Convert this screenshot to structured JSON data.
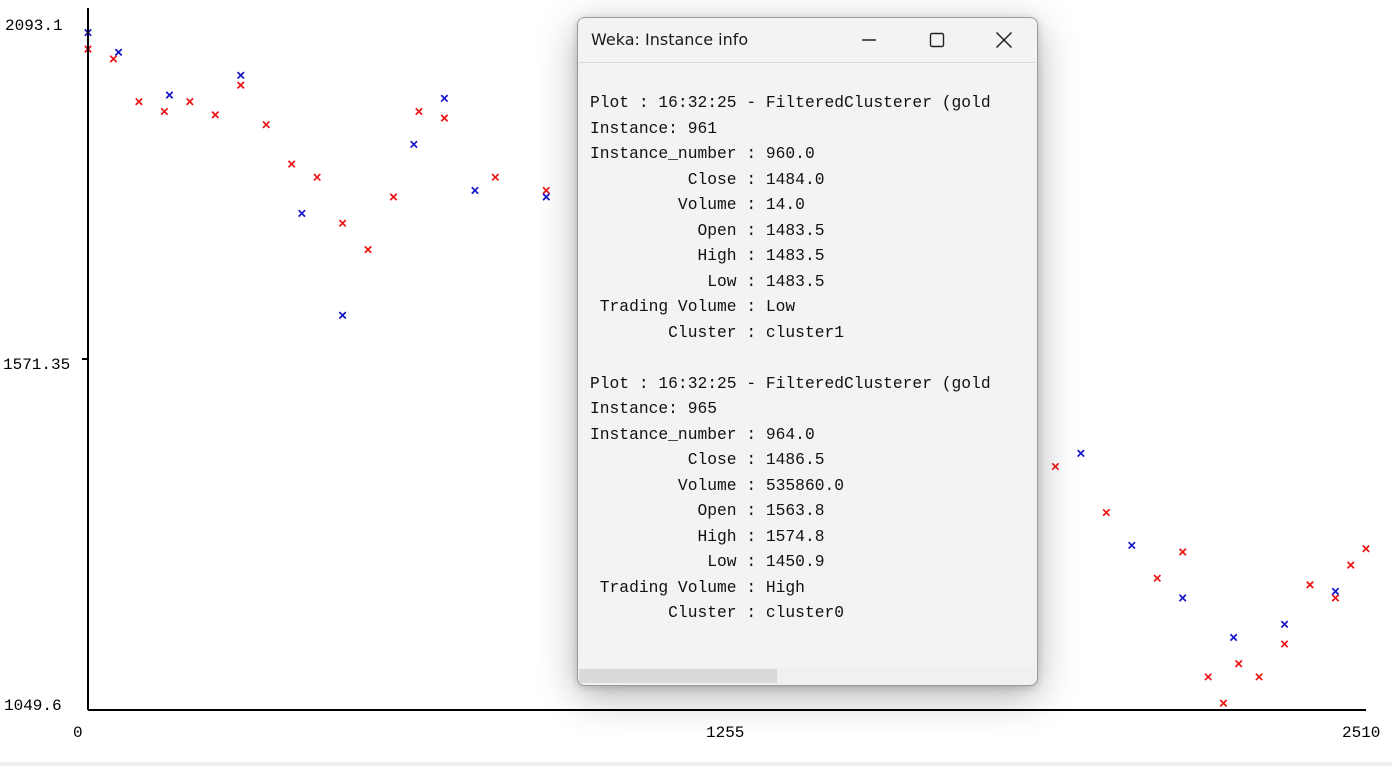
{
  "plot": {
    "y_ticks": [
      "2093.1",
      "1571.35",
      "1049.6"
    ],
    "x_ticks": [
      "0",
      "1255",
      "2510"
    ],
    "colors": {
      "cluster0": "#ee1111",
      "cluster1": "#1515c8",
      "axis": "#000000"
    },
    "marker": "x"
  },
  "chart_data": {
    "type": "scatter",
    "title": "",
    "xlabel": "",
    "ylabel": "",
    "xlim": [
      0,
      2510
    ],
    "ylim": [
      1049.6,
      2093.1
    ],
    "series": [
      {
        "color": "#ee1111",
        "points": [
          [
            0,
            2055
          ],
          [
            50,
            2040
          ],
          [
            100,
            1975
          ],
          [
            150,
            1960
          ],
          [
            200,
            1975
          ],
          [
            250,
            1955
          ],
          [
            300,
            2000
          ],
          [
            350,
            1940
          ],
          [
            400,
            1880
          ],
          [
            450,
            1860
          ],
          [
            500,
            1790
          ],
          [
            550,
            1750
          ],
          [
            600,
            1830
          ],
          [
            650,
            1960
          ],
          [
            700,
            1950
          ],
          [
            800,
            1860
          ],
          [
            900,
            1840
          ],
          [
            1000,
            1860
          ],
          [
            1100,
            1820
          ],
          [
            1200,
            1760
          ],
          [
            1300,
            1840
          ],
          [
            1400,
            1925
          ],
          [
            1500,
            1870
          ],
          [
            1600,
            1770
          ],
          [
            1700,
            1660
          ],
          [
            1750,
            1575
          ],
          [
            1800,
            1520
          ],
          [
            1900,
            1420
          ],
          [
            2000,
            1350
          ],
          [
            2100,
            1250
          ],
          [
            2150,
            1290
          ],
          [
            2200,
            1100
          ],
          [
            2230,
            1060
          ],
          [
            2260,
            1120
          ],
          [
            2300,
            1100
          ],
          [
            2350,
            1150
          ],
          [
            2400,
            1240
          ],
          [
            2450,
            1220
          ],
          [
            2480,
            1270
          ],
          [
            2510,
            1295
          ]
        ]
      },
      {
        "color": "#1515c8",
        "points": [
          [
            0,
            2080
          ],
          [
            60,
            2050
          ],
          [
            160,
            1985
          ],
          [
            300,
            2015
          ],
          [
            420,
            1805
          ],
          [
            500,
            1650
          ],
          [
            640,
            1910
          ],
          [
            700,
            1980
          ],
          [
            760,
            1840
          ],
          [
            900,
            1830
          ],
          [
            1000,
            1900
          ],
          [
            1150,
            1840
          ],
          [
            1280,
            1955
          ],
          [
            1350,
            2060
          ],
          [
            1420,
            1990
          ],
          [
            1530,
            1860
          ],
          [
            1620,
            1780
          ],
          [
            1700,
            1620
          ],
          [
            1780,
            1480
          ],
          [
            1850,
            1380
          ],
          [
            1950,
            1440
          ],
          [
            2050,
            1300
          ],
          [
            2150,
            1220
          ],
          [
            2250,
            1160
          ],
          [
            2350,
            1180
          ],
          [
            2450,
            1230
          ]
        ]
      }
    ]
  },
  "dialog": {
    "title": "Weka: Instance info",
    "lines": [
      "Plot : 16:32:25 - FilteredClusterer (gold",
      "Instance: 961",
      "Instance_number : 960.0",
      "          Close : 1484.0",
      "         Volume : 14.0",
      "           Open : 1483.5",
      "           High : 1483.5",
      "            Low : 1483.5",
      " Trading Volume : Low",
      "        Cluster : cluster1",
      "",
      "Plot : 16:32:25 - FilteredClusterer (gold",
      "Instance: 965",
      "Instance_number : 964.0",
      "          Close : 1486.5",
      "         Volume : 535860.0",
      "           Open : 1563.8",
      "           High : 1574.8",
      "            Low : 1450.9",
      " Trading Volume : High",
      "        Cluster : cluster0"
    ]
  }
}
